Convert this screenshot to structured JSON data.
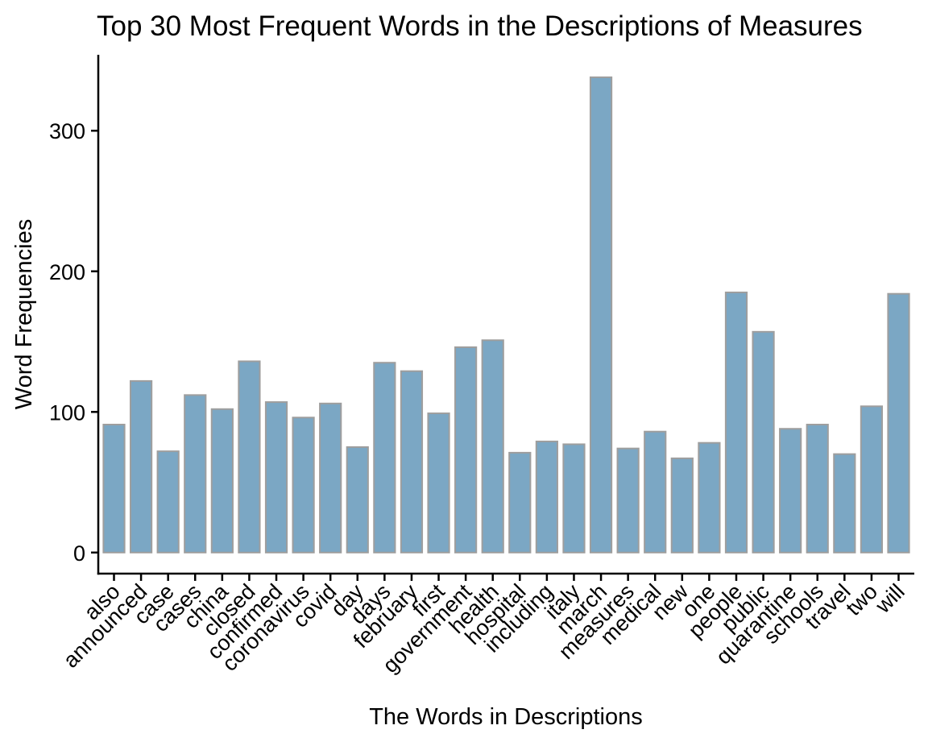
{
  "chart_data": {
    "type": "bar",
    "title": "Top 30 Most Frequent Words in the Descriptions of Measures",
    "xlabel": "The Words in Descriptions",
    "ylabel": "Word Frequencies",
    "categories": [
      "also",
      "announced",
      "case",
      "cases",
      "china",
      "closed",
      "confirmed",
      "coronavirus",
      "covid",
      "day",
      "days",
      "february",
      "first",
      "government",
      "health",
      "hospital",
      "including",
      "italy",
      "march",
      "measures",
      "medical",
      "new",
      "one",
      "people",
      "public",
      "quarantine",
      "schools",
      "travel",
      "two",
      "will"
    ],
    "values": [
      91,
      122,
      72,
      112,
      102,
      136,
      107,
      96,
      106,
      75,
      135,
      129,
      99,
      146,
      151,
      71,
      79,
      77,
      338,
      74,
      86,
      67,
      78,
      185,
      157,
      88,
      91,
      70,
      104,
      184
    ],
    "yticks": [
      0,
      100,
      200,
      300
    ],
    "ylim": [
      -15,
      354
    ],
    "grid": false,
    "colors": {
      "bar_fill": "#7ba7c4",
      "bar_stroke": "#9e9e9e"
    }
  }
}
